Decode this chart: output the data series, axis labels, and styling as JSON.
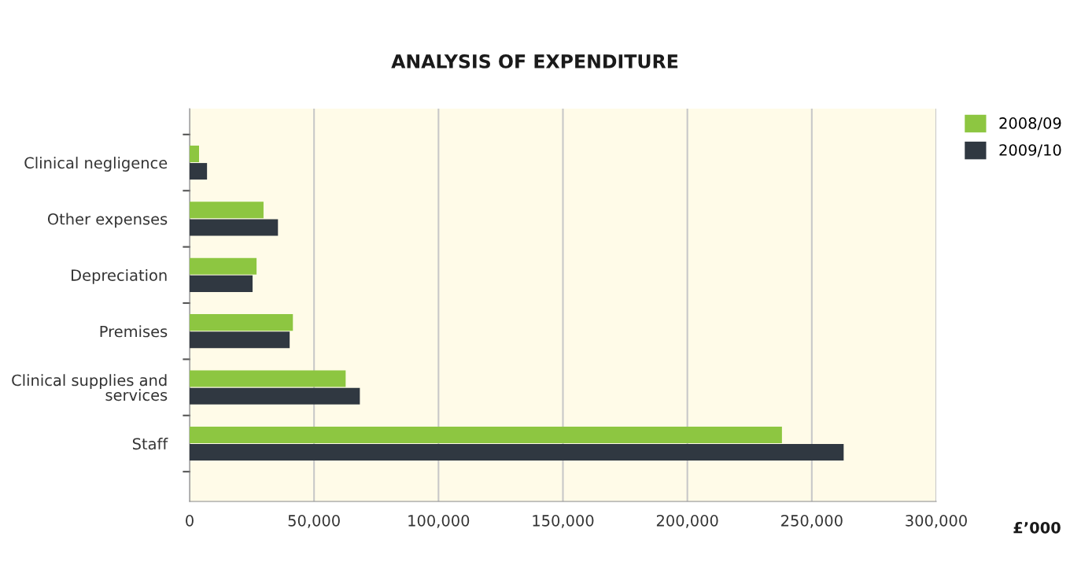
{
  "chart_data": {
    "type": "bar",
    "orientation": "horizontal",
    "title": "ANALYSIS OF EXPENDITURE",
    "xlabel": "£’000",
    "categories": [
      "Clinical negligence",
      "Other expenses",
      "Depreciation",
      "Premises",
      "Clinical supplies and\nservices",
      "Staff"
    ],
    "series": [
      {
        "name": "2008/09",
        "color": "#8dc641",
        "values": [
          3800,
          29700,
          26900,
          41500,
          62700,
          238000
        ]
      },
      {
        "name": "2009/10",
        "color": "#303841",
        "values": [
          7000,
          35500,
          25300,
          40200,
          68400,
          262800
        ]
      }
    ],
    "xlim": [
      0,
      300000
    ],
    "xticks": [
      {
        "value": 0,
        "label": "0"
      },
      {
        "value": 50000,
        "label": "50,000"
      },
      {
        "value": 100000,
        "label": "100,000"
      },
      {
        "value": 150000,
        "label": "150,000"
      },
      {
        "value": 200000,
        "label": "200,000"
      },
      {
        "value": 250000,
        "label": "250,000"
      },
      {
        "value": 300000,
        "label": "300,000"
      }
    ],
    "grid": "x",
    "legend": "top right"
  }
}
